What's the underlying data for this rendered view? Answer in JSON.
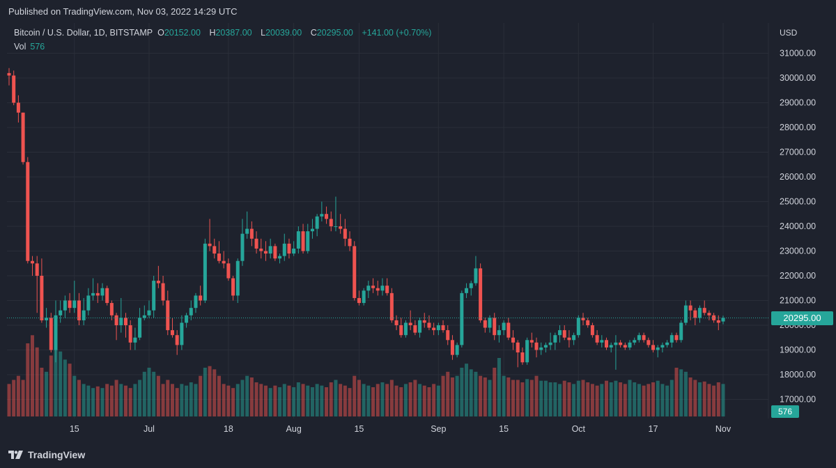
{
  "header": {
    "published": "Published on TradingView.com, Nov 03, 2022 14:29 UTC"
  },
  "legend": {
    "symbol": "Bitcoin / U.S. Dollar, 1D, BITSTAMP",
    "o_label": "O",
    "o": "20152.00",
    "h_label": "H",
    "h": "20387.00",
    "l_label": "L",
    "l": "20039.00",
    "c_label": "C",
    "c": "20295.00",
    "change": "+141.00 (+0.70%)",
    "vol_label": "Vol",
    "vol": "576"
  },
  "axis": {
    "currency": "USD",
    "last_price": "20295.00",
    "last_volume": "576"
  },
  "footer": {
    "brand": "TradingView",
    "logo_icon": "tradingview-logo-icon"
  },
  "colors": {
    "up": "#26a69a",
    "down": "#ef5350",
    "background": "#1e222d",
    "grid": "#2a2e39"
  },
  "chart_data": {
    "type": "candlestick",
    "y_ticks": [
      "31000.00",
      "30000.00",
      "29000.00",
      "28000.00",
      "27000.00",
      "26000.00",
      "25000.00",
      "24000.00",
      "23000.00",
      "22000.00",
      "21000.00",
      "20000.00",
      "19000.00",
      "18000.00",
      "17000.00"
    ],
    "x_ticks": [
      "15",
      "Jul",
      "18",
      "Aug",
      "15",
      "Sep",
      "15",
      "Oct",
      "17",
      "Nov"
    ],
    "x_tick_days": [
      14,
      30,
      47,
      61,
      75,
      92,
      106,
      122,
      138,
      153
    ],
    "y_min": 16500,
    "y_max": 31600,
    "last_price": 20295,
    "candles": [
      [
        30200,
        30400,
        29700,
        30100
      ],
      [
        30100,
        30300,
        28900,
        29000
      ],
      [
        29000,
        29300,
        28200,
        28600
      ],
      [
        28600,
        28600,
        26500,
        26600
      ],
      [
        26600,
        26800,
        22500,
        22600
      ],
      [
        22600,
        22800,
        22000,
        22500
      ],
      [
        22500,
        22800,
        20500,
        22000
      ],
      [
        22000,
        22700,
        20100,
        20200
      ],
      [
        20200,
        20700,
        19900,
        20300
      ],
      [
        20300,
        20500,
        18900,
        19000
      ],
      [
        19000,
        21000,
        18500,
        20400
      ],
      [
        20400,
        21000,
        20100,
        20600
      ],
      [
        20600,
        21200,
        20300,
        21000
      ],
      [
        21000,
        21300,
        20500,
        20700
      ],
      [
        20700,
        21800,
        20500,
        21000
      ],
      [
        21000,
        21300,
        20000,
        20200
      ],
      [
        20200,
        21100,
        20000,
        20600
      ],
      [
        20600,
        21500,
        20400,
        21200
      ],
      [
        21200,
        21900,
        21000,
        21300
      ],
      [
        21300,
        21700,
        20900,
        21200
      ],
      [
        21200,
        21700,
        21000,
        21500
      ],
      [
        21500,
        21600,
        20800,
        20900
      ],
      [
        20900,
        21000,
        20200,
        20400
      ],
      [
        20400,
        20500,
        19400,
        20000
      ],
      [
        20000,
        21100,
        19700,
        20300
      ],
      [
        20300,
        20500,
        19500,
        20000
      ],
      [
        20000,
        20200,
        19000,
        19300
      ],
      [
        19300,
        19900,
        19000,
        19500
      ],
      [
        19500,
        20700,
        19400,
        20300
      ],
      [
        20300,
        20800,
        20200,
        20400
      ],
      [
        20400,
        21000,
        20300,
        20600
      ],
      [
        20600,
        22000,
        20300,
        21800
      ],
      [
        21800,
        22400,
        21500,
        21700
      ],
      [
        21700,
        22000,
        20800,
        21000
      ],
      [
        21000,
        21400,
        19600,
        19800
      ],
      [
        19800,
        20300,
        19500,
        19600
      ],
      [
        19600,
        19800,
        18800,
        19200
      ],
      [
        19200,
        20400,
        19000,
        20100
      ],
      [
        20100,
        20500,
        19900,
        20400
      ],
      [
        20400,
        21000,
        20200,
        20700
      ],
      [
        20700,
        21300,
        20500,
        21200
      ],
      [
        21200,
        21600,
        20800,
        21000
      ],
      [
        21000,
        23500,
        20900,
        23300
      ],
      [
        23300,
        24300,
        23000,
        23200
      ],
      [
        23200,
        23500,
        22700,
        22900
      ],
      [
        22900,
        23400,
        22500,
        22600
      ],
      [
        22600,
        23000,
        22300,
        22500
      ],
      [
        22500,
        22700,
        21800,
        21900
      ],
      [
        21900,
        22000,
        21000,
        21200
      ],
      [
        21200,
        22700,
        20900,
        22600
      ],
      [
        22600,
        24300,
        22400,
        23700
      ],
      [
        23700,
        24600,
        23500,
        23900
      ],
      [
        23900,
        24200,
        23200,
        23500
      ],
      [
        23500,
        23800,
        22900,
        23100
      ],
      [
        23100,
        23500,
        22700,
        23000
      ],
      [
        23000,
        23400,
        22600,
        22900
      ],
      [
        22900,
        23500,
        22700,
        23200
      ],
      [
        23200,
        23300,
        22600,
        22700
      ],
      [
        22700,
        22900,
        22500,
        22800
      ],
      [
        22800,
        23700,
        22600,
        23300
      ],
      [
        23300,
        23500,
        22700,
        22900
      ],
      [
        22900,
        23400,
        22800,
        23100
      ],
      [
        23100,
        24000,
        22900,
        23800
      ],
      [
        23800,
        24100,
        22900,
        23000
      ],
      [
        23000,
        24100,
        22900,
        23800
      ],
      [
        23800,
        24300,
        23500,
        23900
      ],
      [
        23900,
        24500,
        23600,
        24400
      ],
      [
        24400,
        25000,
        24200,
        24500
      ],
      [
        24500,
        24800,
        24100,
        24300
      ],
      [
        24300,
        24600,
        23800,
        24000
      ],
      [
        24000,
        25200,
        23800,
        24000
      ],
      [
        24000,
        24500,
        23700,
        23900
      ],
      [
        23900,
        24300,
        23200,
        23500
      ],
      [
        23500,
        23800,
        23000,
        23200
      ],
      [
        23200,
        23400,
        21000,
        21100
      ],
      [
        21100,
        21400,
        20800,
        20900
      ],
      [
        20900,
        21500,
        20800,
        21400
      ],
      [
        21400,
        21800,
        21100,
        21600
      ],
      [
        21600,
        21900,
        21300,
        21500
      ],
      [
        21500,
        21800,
        21200,
        21400
      ],
      [
        21400,
        21900,
        21200,
        21600
      ],
      [
        21600,
        21900,
        21200,
        21300
      ],
      [
        21300,
        21500,
        20100,
        20200
      ],
      [
        20200,
        20400,
        19800,
        20000
      ],
      [
        20000,
        20300,
        19500,
        19600
      ],
      [
        19600,
        20200,
        19500,
        20100
      ],
      [
        20100,
        20600,
        19800,
        20000
      ],
      [
        20000,
        20200,
        19600,
        19700
      ],
      [
        19700,
        20300,
        19500,
        20200
      ],
      [
        20200,
        20500,
        19900,
        20100
      ],
      [
        20100,
        20400,
        19800,
        19900
      ],
      [
        19900,
        20100,
        19600,
        19800
      ],
      [
        19800,
        20100,
        19600,
        20000
      ],
      [
        20000,
        20200,
        19700,
        19800
      ],
      [
        19800,
        20000,
        19200,
        19400
      ],
      [
        19400,
        19600,
        18600,
        18800
      ],
      [
        18800,
        19300,
        18700,
        19200
      ],
      [
        19200,
        21400,
        19100,
        21300
      ],
      [
        21300,
        21700,
        21100,
        21500
      ],
      [
        21500,
        21800,
        21200,
        21700
      ],
      [
        21700,
        22800,
        21600,
        22300
      ],
      [
        22300,
        22500,
        20100,
        20200
      ],
      [
        20200,
        20300,
        19700,
        19900
      ],
      [
        19900,
        20400,
        19700,
        20300
      ],
      [
        20300,
        20500,
        19400,
        19600
      ],
      [
        19600,
        20000,
        19300,
        19800
      ],
      [
        19800,
        20200,
        19600,
        20100
      ],
      [
        20100,
        20300,
        19400,
        19500
      ],
      [
        19500,
        19800,
        19000,
        19300
      ],
      [
        19300,
        19400,
        18300,
        18900
      ],
      [
        18900,
        19100,
        18400,
        18500
      ],
      [
        18500,
        19500,
        18400,
        19400
      ],
      [
        19400,
        19700,
        19100,
        19300
      ],
      [
        19300,
        19500,
        18700,
        19000
      ],
      [
        19000,
        19300,
        18800,
        19100
      ],
      [
        19100,
        19300,
        18900,
        19200
      ],
      [
        19200,
        19700,
        19000,
        19300
      ],
      [
        19300,
        19700,
        19000,
        19600
      ],
      [
        19600,
        20000,
        19300,
        19800
      ],
      [
        19800,
        20000,
        19400,
        19500
      ],
      [
        19500,
        19800,
        19100,
        19400
      ],
      [
        19400,
        19700,
        19200,
        19600
      ],
      [
        19600,
        20400,
        19500,
        20300
      ],
      [
        20300,
        20500,
        20000,
        20200
      ],
      [
        20200,
        20300,
        19900,
        20000
      ],
      [
        20000,
        20100,
        19500,
        19600
      ],
      [
        19600,
        19800,
        19200,
        19300
      ],
      [
        19300,
        19600,
        19100,
        19400
      ],
      [
        19400,
        19500,
        19000,
        19100
      ],
      [
        19100,
        19300,
        18900,
        19200
      ],
      [
        19200,
        19600,
        18200,
        19300
      ],
      [
        19300,
        19400,
        19100,
        19200
      ],
      [
        19200,
        19300,
        19000,
        19100
      ],
      [
        19100,
        19400,
        19000,
        19300
      ],
      [
        19300,
        19500,
        19200,
        19400
      ],
      [
        19400,
        19700,
        19300,
        19600
      ],
      [
        19600,
        19700,
        19300,
        19400
      ],
      [
        19400,
        19500,
        19100,
        19200
      ],
      [
        19200,
        19400,
        18900,
        19000
      ],
      [
        19000,
        19200,
        18700,
        19100
      ],
      [
        19100,
        19300,
        18900,
        19200
      ],
      [
        19200,
        19400,
        19100,
        19300
      ],
      [
        19300,
        19700,
        19100,
        19600
      ],
      [
        19600,
        19700,
        19300,
        19400
      ],
      [
        19400,
        20200,
        19300,
        20100
      ],
      [
        20100,
        21000,
        20000,
        20800
      ],
      [
        20800,
        21000,
        20200,
        20600
      ],
      [
        20600,
        20700,
        20000,
        20300
      ],
      [
        20300,
        20800,
        20100,
        20700
      ],
      [
        20700,
        21000,
        20400,
        20500
      ],
      [
        20500,
        20600,
        20200,
        20400
      ],
      [
        20400,
        20500,
        20100,
        20200
      ],
      [
        20200,
        20400,
        19800,
        20100
      ],
      [
        20152,
        20387,
        20039,
        20295
      ]
    ],
    "volumes": [
      40,
      45,
      50,
      45,
      90,
      100,
      85,
      60,
      55,
      75,
      120,
      80,
      70,
      65,
      50,
      45,
      40,
      38,
      35,
      37,
      35,
      40,
      38,
      45,
      40,
      38,
      35,
      40,
      45,
      55,
      60,
      55,
      50,
      40,
      45,
      40,
      35,
      40,
      38,
      42,
      40,
      50,
      60,
      62,
      58,
      50,
      40,
      38,
      35,
      40,
      45,
      50,
      48,
      42,
      40,
      38,
      35,
      38,
      36,
      40,
      38,
      36,
      42,
      40,
      38,
      36,
      40,
      38,
      36,
      42,
      45,
      40,
      38,
      35,
      50,
      45,
      40,
      38,
      36,
      40,
      42,
      40,
      45,
      38,
      36,
      40,
      42,
      45,
      40,
      38,
      36,
      40,
      38,
      50,
      55,
      48,
      50,
      60,
      65,
      58,
      55,
      50,
      48,
      45,
      60,
      72,
      50,
      48,
      45,
      45,
      42,
      46,
      45,
      50,
      44,
      44,
      42,
      42,
      40,
      44,
      42,
      40,
      44,
      45,
      42,
      40,
      38,
      40,
      44,
      42,
      44,
      42,
      40,
      45,
      42,
      40,
      38,
      40,
      42,
      44,
      40,
      38,
      45,
      60,
      58,
      55,
      48,
      45,
      42,
      43,
      40,
      38,
      42,
      40
    ]
  }
}
